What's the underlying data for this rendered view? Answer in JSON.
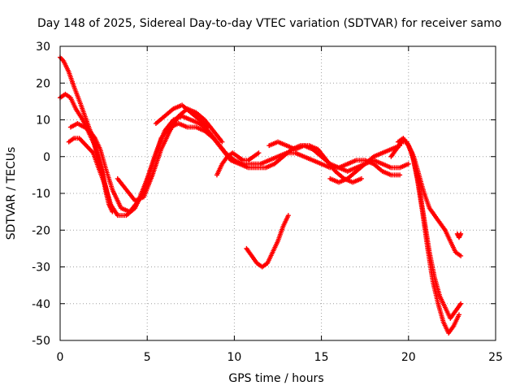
{
  "chart_data": {
    "type": "scatter",
    "title": "Day 148 of 2025, Sidereal Day-to-day VTEC variation (SDTVAR) for receiver samo",
    "xlabel": "GPS time / hours",
    "ylabel": "SDTVAR / TECUs",
    "xlim": [
      0,
      25
    ],
    "ylim": [
      -50,
      30
    ],
    "xticks": [
      0,
      5,
      10,
      15,
      20,
      25
    ],
    "yticks": [
      -50,
      -40,
      -30,
      -20,
      -10,
      0,
      10,
      20,
      30
    ],
    "grid": true,
    "legend": "none",
    "marker": "+",
    "color": "#ff0000",
    "series": [
      {
        "name": "arc-1",
        "x": [
          0.0,
          0.2,
          0.5,
          0.8,
          1.2,
          1.5,
          1.8,
          2.1,
          2.4,
          2.6,
          2.8,
          3.0
        ],
        "y": [
          27,
          26,
          23,
          19,
          14,
          10,
          6,
          1,
          -4,
          -9,
          -13,
          -15
        ]
      },
      {
        "name": "arc-2",
        "x": [
          0.0,
          0.3,
          0.6,
          0.9,
          1.3,
          1.7,
          2.0,
          2.3,
          2.5,
          2.7,
          2.9
        ],
        "y": [
          16,
          17,
          16,
          13,
          10,
          6,
          3,
          -2,
          -6,
          -10,
          -13
        ]
      },
      {
        "name": "arc-3",
        "x": [
          0.5,
          0.8,
          1.1,
          1.5,
          1.9,
          2.2,
          2.6,
          2.9,
          3.3,
          3.8,
          4.3,
          4.8,
          5.3,
          5.8,
          6.3,
          6.8,
          7.3,
          7.8,
          8.3,
          8.8,
          9.3,
          9.8,
          10.3,
          10.8,
          11.3,
          11.8,
          12.3,
          12.8,
          13.3,
          13.8,
          14.3,
          14.8,
          15.3,
          15.8,
          16.3,
          16.8,
          17.3
        ],
        "y": [
          4,
          5,
          5,
          3,
          1,
          -3,
          -8,
          -13,
          -16,
          -16,
          -14,
          -9,
          -2,
          5,
          8,
          9,
          8,
          8,
          7,
          5,
          2,
          -1,
          -2,
          -3,
          -3,
          -3,
          -2,
          0,
          2,
          3,
          3,
          2,
          -1,
          -4,
          -6,
          -7,
          -6
        ]
      },
      {
        "name": "arc-4",
        "x": [
          0.6,
          1.0,
          1.4,
          1.7,
          2.0,
          2.3,
          2.6,
          3.0,
          3.5,
          4.0,
          4.5,
          5.0,
          5.5,
          6.0,
          6.5,
          7.0,
          7.5,
          8.0,
          8.5,
          9.0,
          9.5,
          10.0,
          10.5,
          11.0,
          11.5,
          12.0,
          12.5,
          13.0,
          13.5,
          14.0,
          14.5,
          15.0,
          15.5,
          16.0,
          16.5,
          17.0,
          17.5,
          18.0,
          18.5,
          19.0,
          19.5
        ],
        "y": [
          8,
          9,
          8,
          7,
          5,
          2,
          -3,
          -9,
          -14,
          -15,
          -12,
          -6,
          1,
          7,
          10,
          11,
          10,
          9,
          7,
          4,
          1,
          -1,
          -2,
          -2,
          -2,
          -1,
          0,
          1,
          1,
          0,
          -1,
          -2,
          -3,
          -3,
          -2,
          -1,
          -1,
          -2,
          -4,
          -5,
          -5
        ]
      },
      {
        "name": "arc-5",
        "x": [
          3.3,
          3.8,
          4.3,
          4.8,
          5.3,
          5.8,
          6.3,
          6.8,
          7.3,
          7.8,
          8.3,
          8.8,
          9.3
        ],
        "y": [
          -6,
          -9,
          -12,
          -11,
          -5,
          2,
          7,
          11,
          13,
          12,
          10,
          7,
          4
        ]
      },
      {
        "name": "arc-6",
        "x": [
          5.5,
          6.0,
          6.5,
          7.0,
          7.5,
          8.0,
          8.5
        ],
        "y": [
          9,
          11,
          13,
          14,
          12,
          10,
          8
        ]
      },
      {
        "name": "arc-7",
        "x": [
          9.0,
          9.3,
          9.6,
          9.9,
          10.2,
          10.5,
          10.8,
          11.1,
          11.4
        ],
        "y": [
          -5,
          -2,
          0,
          1,
          0,
          -1,
          -1,
          0,
          1
        ]
      },
      {
        "name": "arc-8",
        "x": [
          10.7,
          11.0,
          11.3,
          11.6,
          11.9,
          12.2,
          12.5,
          12.8,
          13.1
        ],
        "y": [
          -25,
          -27,
          -29,
          -30,
          -29,
          -26,
          -23,
          -19,
          -16
        ]
      },
      {
        "name": "arc-9",
        "x": [
          12.0,
          12.5,
          13.0,
          13.5,
          14.0,
          14.5,
          15.0,
          15.5,
          16.0,
          16.5,
          17.0,
          17.5,
          18.0,
          18.5,
          19.0,
          19.5,
          20.0
        ],
        "y": [
          3,
          4,
          3,
          2,
          3,
          2,
          0,
          -2,
          -3,
          -4,
          -3,
          -2,
          -1,
          -2,
          -3,
          -3,
          -2
        ]
      },
      {
        "name": "arc-10",
        "x": [
          15.5,
          16.0,
          16.5,
          17.0,
          17.5,
          18.0,
          18.5,
          19.0,
          19.5
        ],
        "y": [
          -6,
          -7,
          -6,
          -4,
          -2,
          0,
          1,
          2,
          3
        ]
      },
      {
        "name": "arc-11",
        "x": [
          19.0,
          19.3,
          19.6,
          19.9,
          20.2,
          20.5,
          20.8,
          21.1,
          21.4,
          21.7,
          22.0,
          22.3,
          22.6,
          22.9
        ],
        "y": [
          0,
          2,
          4,
          4,
          1,
          -6,
          -15,
          -25,
          -34,
          -40,
          -45,
          -48,
          -46,
          -43
        ]
      },
      {
        "name": "arc-12",
        "x": [
          19.4,
          19.7,
          20.0,
          20.3,
          20.6,
          20.9,
          21.2,
          21.5,
          21.8,
          22.1,
          22.4,
          22.7,
          23.0
        ],
        "y": [
          4,
          5,
          3,
          -1,
          -8,
          -17,
          -26,
          -33,
          -38,
          -41,
          -44,
          -42,
          -40
        ]
      },
      {
        "name": "arc-13",
        "x": [
          20.0,
          20.3,
          20.6,
          20.9,
          21.2,
          21.5,
          21.8,
          22.1,
          22.4,
          22.7,
          23.0
        ],
        "y": [
          3,
          0,
          -5,
          -10,
          -14,
          -16,
          -18,
          -20,
          -23,
          -26,
          -27
        ]
      },
      {
        "name": "arc-14",
        "x": [
          22.8,
          22.9,
          23.0
        ],
        "y": [
          -21,
          -22,
          -21
        ]
      }
    ]
  }
}
